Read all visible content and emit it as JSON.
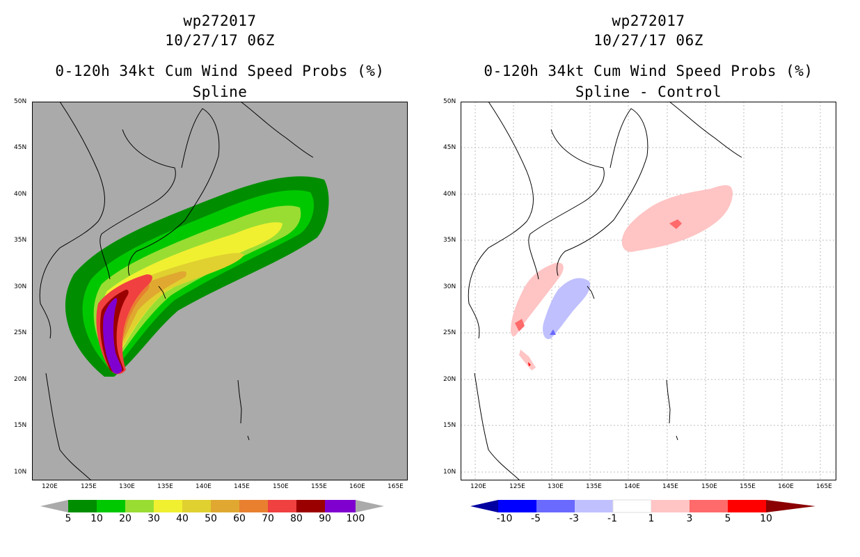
{
  "left_panel": {
    "title": [
      "wp272017",
      "10/27/17 06Z",
      "0-120h 34kt Cum Wind Speed Probs (%)",
      "Spline"
    ],
    "background": "#aaaaaa",
    "lat_labels": [
      "50N",
      "45N",
      "40N",
      "35N",
      "30N",
      "25N",
      "20N",
      "15N",
      "10N"
    ],
    "lon_labels": [
      "120E",
      "125E",
      "130E",
      "135E",
      "140E",
      "145E",
      "150E",
      "155E",
      "160E",
      "165E"
    ],
    "colorbar": {
      "labels": [
        "5",
        "10",
        "20",
        "30",
        "40",
        "50",
        "60",
        "70",
        "80",
        "90",
        "100"
      ],
      "colors": [
        "#008e00",
        "#00c800",
        "#99dd33",
        "#f0f030",
        "#e0d030",
        "#e0a830",
        "#e88030",
        "#f04040",
        "#9b0000",
        "#8000d0"
      ]
    }
  },
  "right_panel": {
    "title": [
      "wp272017",
      "10/27/17 06Z",
      "0-120h 34kt Cum Wind Speed Probs (%)",
      "Spline - Control"
    ],
    "background": "#ffffff",
    "lat_labels": [
      "50N",
      "45N",
      "40N",
      "35N",
      "30N",
      "25N",
      "20N",
      "15N",
      "10N"
    ],
    "lon_labels": [
      "120E",
      "125E",
      "130E",
      "135E",
      "140E",
      "145E",
      "150E",
      "155E",
      "160E",
      "165E"
    ],
    "colorbar": {
      "labels": [
        "-10",
        "-5",
        "-3",
        "-1",
        "1",
        "3",
        "5",
        "10"
      ],
      "colors": [
        "#0000a0",
        "#0000ff",
        "#6a6aff",
        "#c0c0ff",
        "#ffffff",
        "#ffc4c4",
        "#ff6a6a",
        "#ff0000",
        "#8b0000"
      ]
    }
  }
}
